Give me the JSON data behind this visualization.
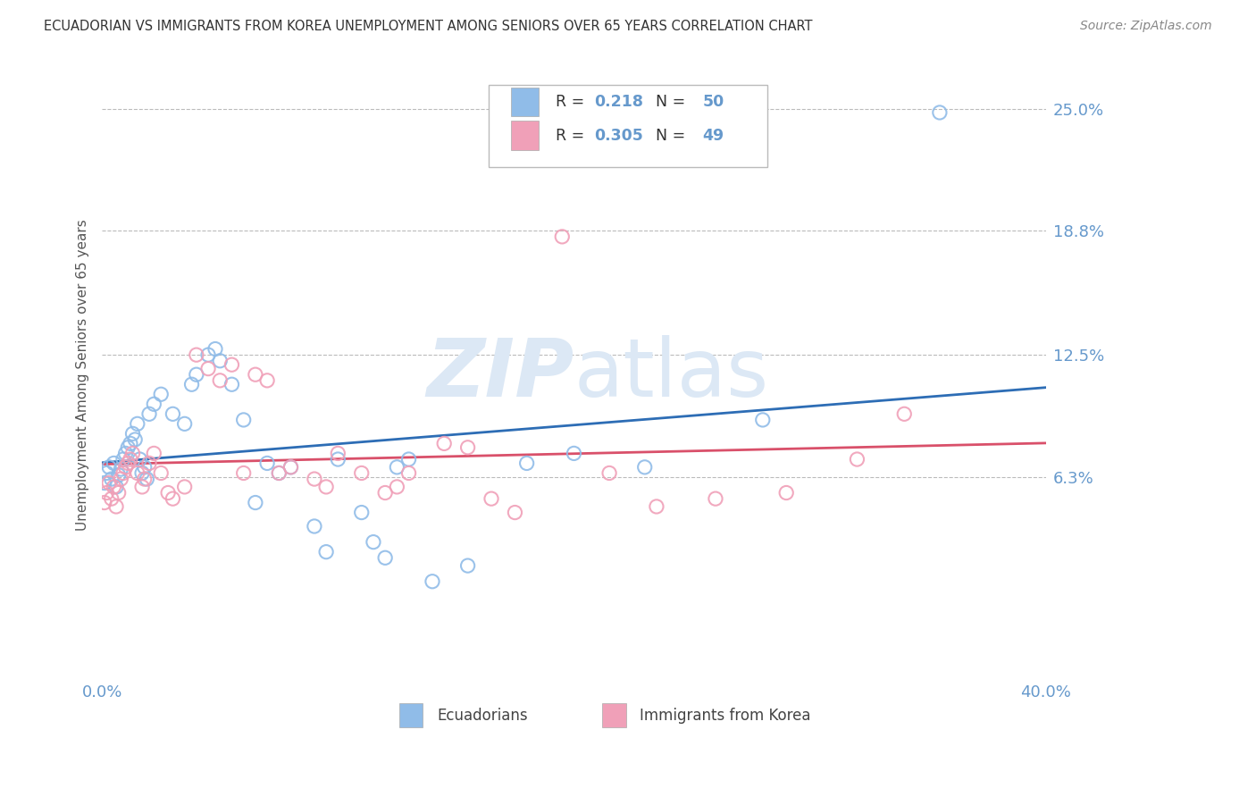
{
  "title": "ECUADORIAN VS IMMIGRANTS FROM KOREA UNEMPLOYMENT AMONG SENIORS OVER 65 YEARS CORRELATION CHART",
  "source": "Source: ZipAtlas.com",
  "ylabel": "Unemployment Among Seniors over 65 years",
  "xlim": [
    0.0,
    0.4
  ],
  "ylim": [
    -0.04,
    0.27
  ],
  "yticks": [
    0.063,
    0.125,
    0.188,
    0.25
  ],
  "ytick_labels": [
    "6.3%",
    "12.5%",
    "18.8%",
    "25.0%"
  ],
  "xticks": [
    0.0,
    0.1,
    0.2,
    0.3,
    0.4
  ],
  "xtick_labels": [
    "0.0%",
    "",
    "",
    "",
    "40.0%"
  ],
  "R_ecu": 0.218,
  "N_ecu": 50,
  "R_kor": 0.305,
  "N_kor": 49,
  "blue_color": "#90bce8",
  "pink_color": "#f0a0b8",
  "blue_line_color": "#2d6db5",
  "pink_line_color": "#d9506a",
  "watermark_color": "#dce8f5",
  "background_color": "#ffffff",
  "grid_color": "#bbbbbb",
  "title_color": "#333333",
  "axis_color": "#6699cc",
  "ecu_x": [
    0.001,
    0.002,
    0.003,
    0.004,
    0.005,
    0.006,
    0.007,
    0.008,
    0.009,
    0.01,
    0.011,
    0.012,
    0.013,
    0.014,
    0.015,
    0.016,
    0.017,
    0.018,
    0.019,
    0.02,
    0.022,
    0.025,
    0.03,
    0.035,
    0.038,
    0.04,
    0.045,
    0.048,
    0.05,
    0.055,
    0.06,
    0.065,
    0.07,
    0.075,
    0.08,
    0.09,
    0.095,
    0.1,
    0.11,
    0.115,
    0.12,
    0.125,
    0.13,
    0.14,
    0.155,
    0.18,
    0.2,
    0.23,
    0.28,
    0.355
  ],
  "ecu_y": [
    0.06,
    0.065,
    0.068,
    0.062,
    0.07,
    0.058,
    0.064,
    0.067,
    0.072,
    0.075,
    0.078,
    0.08,
    0.085,
    0.082,
    0.09,
    0.072,
    0.065,
    0.068,
    0.062,
    0.095,
    0.1,
    0.105,
    0.095,
    0.09,
    0.11,
    0.115,
    0.125,
    0.128,
    0.122,
    0.11,
    0.092,
    0.05,
    0.07,
    0.065,
    0.068,
    0.038,
    0.025,
    0.072,
    0.045,
    0.03,
    0.022,
    0.068,
    0.072,
    0.01,
    0.018,
    0.07,
    0.075,
    0.068,
    0.092,
    0.248
  ],
  "kor_x": [
    0.001,
    0.002,
    0.003,
    0.004,
    0.005,
    0.006,
    0.007,
    0.008,
    0.009,
    0.01,
    0.011,
    0.012,
    0.013,
    0.015,
    0.017,
    0.018,
    0.02,
    0.022,
    0.025,
    0.028,
    0.03,
    0.035,
    0.04,
    0.045,
    0.05,
    0.055,
    0.06,
    0.065,
    0.07,
    0.075,
    0.08,
    0.09,
    0.095,
    0.1,
    0.11,
    0.12,
    0.125,
    0.13,
    0.145,
    0.155,
    0.165,
    0.175,
    0.195,
    0.215,
    0.235,
    0.26,
    0.29,
    0.32,
    0.34
  ],
  "kor_y": [
    0.05,
    0.055,
    0.06,
    0.052,
    0.058,
    0.048,
    0.055,
    0.062,
    0.065,
    0.068,
    0.07,
    0.072,
    0.075,
    0.065,
    0.058,
    0.062,
    0.07,
    0.075,
    0.065,
    0.055,
    0.052,
    0.058,
    0.125,
    0.118,
    0.112,
    0.12,
    0.065,
    0.115,
    0.112,
    0.065,
    0.068,
    0.062,
    0.058,
    0.075,
    0.065,
    0.055,
    0.058,
    0.065,
    0.08,
    0.078,
    0.052,
    0.045,
    0.185,
    0.065,
    0.048,
    0.052,
    0.055,
    0.072,
    0.095
  ]
}
